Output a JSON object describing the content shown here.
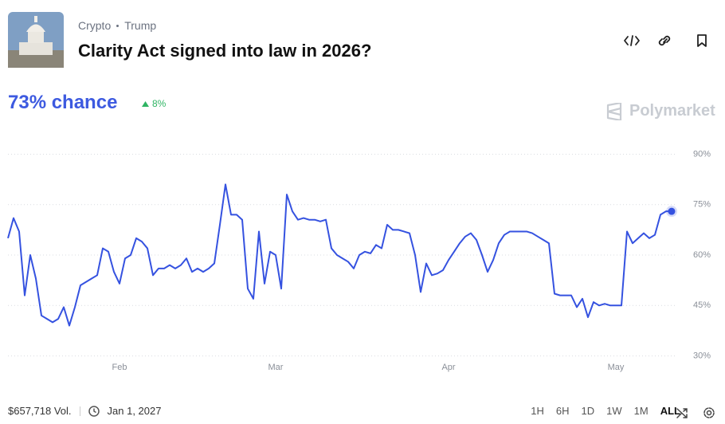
{
  "header": {
    "breadcrumb": [
      "Crypto",
      "Trump"
    ],
    "title": "Clarity Act signed into law in 2026?"
  },
  "chance": {
    "label": "73% chance",
    "change": "8%"
  },
  "brand": "Polymarket",
  "chart_data": {
    "type": "line",
    "categories": [
      null,
      null,
      null,
      null,
      null,
      null,
      null,
      null,
      null,
      null,
      null,
      null,
      null,
      null,
      null,
      null,
      null,
      null,
      null,
      null,
      "Feb",
      null,
      null,
      null,
      null,
      null,
      null,
      null,
      null,
      null,
      null,
      null,
      null,
      null,
      null,
      null,
      null,
      null,
      null,
      null,
      null,
      null,
      null,
      null,
      null,
      null,
      null,
      null,
      "Mar",
      null,
      null,
      null,
      null,
      null,
      null,
      null,
      null,
      null,
      null,
      null,
      null,
      null,
      null,
      null,
      null,
      null,
      null,
      null,
      null,
      null,
      null,
      null,
      null,
      null,
      null,
      null,
      null,
      null,
      null,
      "Apr",
      null,
      null,
      null,
      null,
      null,
      null,
      null,
      null,
      null,
      null,
      null,
      null,
      null,
      null,
      null,
      null,
      null,
      null,
      null,
      null,
      null,
      null,
      null,
      null,
      null,
      null,
      null,
      null,
      null,
      "May",
      null,
      null,
      null,
      null,
      null,
      null,
      null,
      null,
      null,
      null
    ],
    "series": [
      {
        "color": "#3552e0",
        "values": [
          65,
          71,
          67,
          48,
          60,
          53,
          42,
          41,
          40,
          41,
          44.5,
          39,
          44.5,
          51,
          52,
          53,
          54,
          62,
          61,
          55,
          51.5,
          59,
          60,
          65,
          64,
          62,
          54,
          56,
          56,
          57,
          56,
          57,
          59,
          55,
          56,
          55,
          56,
          57.5,
          69,
          81,
          72,
          72,
          70.5,
          50,
          47,
          67,
          51.5,
          61,
          60,
          50,
          78,
          73,
          70.5,
          71,
          70.5,
          70.5,
          70,
          70.5,
          62,
          60,
          59,
          58,
          56,
          60,
          61,
          60.5,
          63,
          62,
          69,
          67.5,
          67.5,
          67,
          66.5,
          60,
          49,
          57.5,
          54,
          54.5,
          55.5,
          58.5,
          61,
          63.5,
          65.5,
          66.5,
          64.5,
          60,
          55,
          58.5,
          63.5,
          66,
          67,
          67,
          67,
          67,
          66.5,
          65.5,
          64.5,
          63.5,
          48.5,
          48,
          48,
          48,
          44.5,
          47,
          41.5,
          46,
          45,
          45.5,
          45,
          45,
          45,
          67,
          63.5,
          65,
          66.5,
          65,
          66,
          72,
          73,
          73
        ]
      }
    ],
    "ylim": [
      28,
      92
    ],
    "yticks": [
      {
        "value": 30,
        "label": "30%"
      },
      {
        "value": 45,
        "label": "45%"
      },
      {
        "value": 60,
        "label": "60%"
      },
      {
        "value": 75,
        "label": "75%"
      },
      {
        "value": 90,
        "label": "90%"
      }
    ],
    "grid": true
  },
  "footer": {
    "volume": "$657,718 Vol.",
    "end_date": "Jan 1, 2027",
    "ranges": [
      "1H",
      "6H",
      "1D",
      "1W",
      "1M",
      "ALL"
    ]
  }
}
